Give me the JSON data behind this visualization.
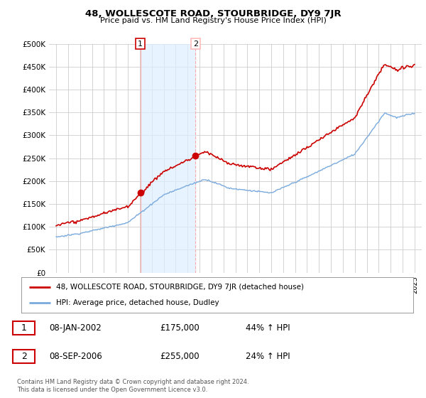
{
  "title": "48, WOLLESCOTE ROAD, STOURBRIDGE, DY9 7JR",
  "subtitle": "Price paid vs. HM Land Registry's House Price Index (HPI)",
  "legend_label_red": "48, WOLLESCOTE ROAD, STOURBRIDGE, DY9 7JR (detached house)",
  "legend_label_blue": "HPI: Average price, detached house, Dudley",
  "transaction1_date": "08-JAN-2002",
  "transaction1_price": "£175,000",
  "transaction1_hpi": "44% ↑ HPI",
  "transaction2_date": "08-SEP-2006",
  "transaction2_price": "£255,000",
  "transaction2_hpi": "24% ↑ HPI",
  "footnote": "Contains HM Land Registry data © Crown copyright and database right 2024.\nThis data is licensed under the Open Government Licence v3.0.",
  "ylim": [
    0,
    500000
  ],
  "yticks": [
    0,
    50000,
    100000,
    150000,
    200000,
    250000,
    300000,
    350000,
    400000,
    450000,
    500000
  ],
  "background_color": "#ffffff",
  "grid_color": "#cccccc",
  "red_color": "#cc0000",
  "blue_color": "#7aaadd",
  "vline1_year": 2002.05,
  "vline2_year": 2006.67,
  "marker1_year": 2002.05,
  "marker1_value": 175000,
  "marker2_year": 2006.67,
  "marker2_value": 255000
}
